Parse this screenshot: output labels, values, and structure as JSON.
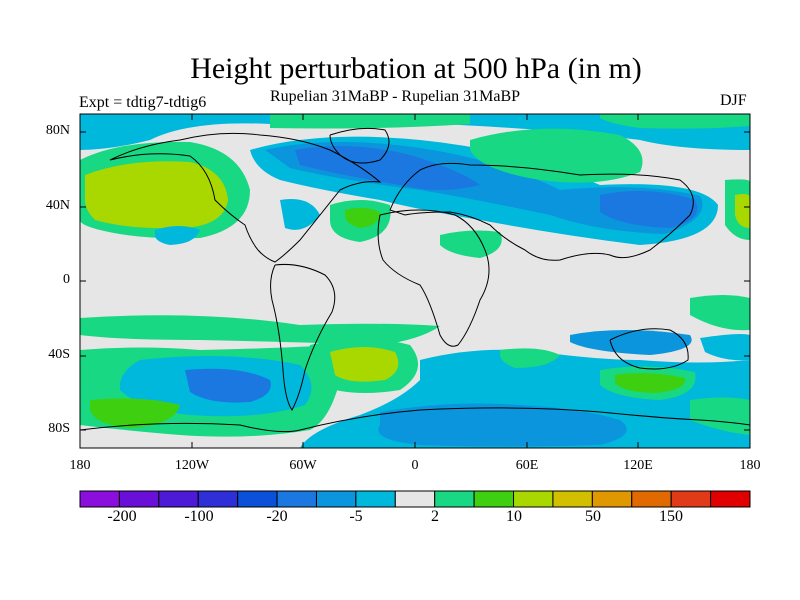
{
  "title": "Height perturbation at 500 hPa (in m)",
  "subtitle_left": "Expt = tdtig7-tdtig6",
  "subtitle_center": "Rupelian  31MaBP - Rupelian  31MaBP",
  "subtitle_right": "DJF",
  "map": {
    "lat_ticks": [
      "80N",
      "40N",
      "0",
      "40S",
      "80S"
    ],
    "lon_ticks": [
      "180",
      "120W",
      "60W",
      "0",
      "60E",
      "120E",
      "180"
    ],
    "background_color": "#e6e6e6"
  },
  "colorbar": {
    "colors": [
      "#8a0fdc",
      "#6a0fd8",
      "#4d1ad8",
      "#2f2fd8",
      "#0a50d8",
      "#1a78e0",
      "#0b95dc",
      "#00b8dc",
      "#e6e6e6",
      "#18d884",
      "#3ed010",
      "#a8d800",
      "#d2c000",
      "#e09800",
      "#e06a00",
      "#e03a18",
      "#e00000"
    ],
    "labels": [
      "-200",
      "-100",
      "-20",
      "-5",
      "2",
      "10",
      "50",
      "150"
    ]
  }
}
